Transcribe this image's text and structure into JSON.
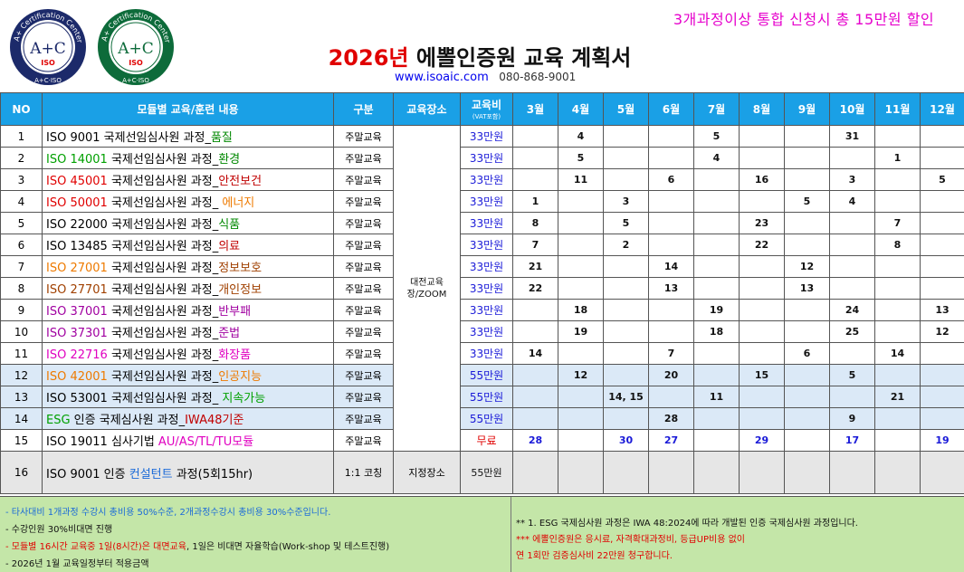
{
  "header": {
    "promo": "3개과정이상 통합 신청시 총 15만원 할인",
    "title_year": "2026년",
    "title_rest": "에뽈인증원 교육 계획서",
    "url": "www.isoaic.com",
    "phone": "080-868-9001",
    "logos": [
      {
        "ring_text": "A+ Certification Center",
        "center": "A+C",
        "sub": "ISO",
        "bottom": "A+C·ISO",
        "color": "#1c2a6a"
      },
      {
        "ring_text": "A+ Certification Center",
        "center": "A+C",
        "sub": "ISO",
        "bottom": "A+C·ISO",
        "color": "#0d6b3a"
      }
    ]
  },
  "table": {
    "headers": {
      "no": "NO",
      "course": "모듈별 교육/훈련 내용",
      "type": "구분",
      "location": "교육장소",
      "fee": "교육비",
      "fee_note": "(VAT포함)",
      "months": [
        "3월",
        "4월",
        "5월",
        "6월",
        "7월",
        "8월",
        "9월",
        "10월",
        "11월",
        "12월"
      ]
    },
    "location_merged": "대전교육장/ZOOM",
    "rows": [
      {
        "no": "1",
        "code": "ISO 9001",
        "code_color": "black",
        "mid": " 국제선임심사원 과정_",
        "tail": "품질",
        "tail_color": "darkgreen",
        "type": "주말교육",
        "fee": "33만원",
        "dates": [
          "",
          "4",
          "",
          "",
          "5",
          "",
          "",
          "31",
          "",
          ""
        ]
      },
      {
        "no": "2",
        "code": "ISO 14001",
        "code_color": "green",
        "mid": " 국제선임심사원 과정_",
        "tail": "환경",
        "tail_color": "darkgreen",
        "type": "주말교육",
        "fee": "33만원",
        "dates": [
          "",
          "5",
          "",
          "",
          "4",
          "",
          "",
          "",
          "1",
          ""
        ]
      },
      {
        "no": "3",
        "code": "ISO 45001",
        "code_color": "red",
        "mid": " 국제선임심사원 과정_",
        "tail": "안전보건",
        "tail_color": "darkred",
        "type": "주말교육",
        "fee": "33만원",
        "dates": [
          "",
          "11",
          "",
          "6",
          "",
          "16",
          "",
          "3",
          "",
          "5"
        ]
      },
      {
        "no": "4",
        "code": "ISO 50001",
        "code_color": "red",
        "mid": " 국제선임심사원 과정_ ",
        "tail": "에너지",
        "tail_color": "orange",
        "type": "주말교육",
        "fee": "33만원",
        "dates": [
          "1",
          "",
          "3",
          "",
          "",
          "",
          "5",
          "4",
          "",
          ""
        ]
      },
      {
        "no": "5",
        "code": "ISO 22000",
        "code_color": "black",
        "mid": " 국제선임심사원 과정_",
        "tail": "식품",
        "tail_color": "darkgreen",
        "type": "주말교육",
        "fee": "33만원",
        "dates": [
          "8",
          "",
          "5",
          "",
          "",
          "23",
          "",
          "",
          "7",
          ""
        ]
      },
      {
        "no": "6",
        "code": "ISO 13485",
        "code_color": "black",
        "mid": " 국제선임심사원 과정_",
        "tail": "의료",
        "tail_color": "darkred",
        "type": "주말교육",
        "fee": "33만원",
        "dates": [
          "7",
          "",
          "2",
          "",
          "",
          "22",
          "",
          "",
          "8",
          ""
        ]
      },
      {
        "no": "7",
        "code": "ISO 27001",
        "code_color": "orange",
        "mid": " 국제선임심사원 과정_",
        "tail": "정보보호",
        "tail_color": "brown",
        "type": "주말교육",
        "fee": "33만원",
        "dates": [
          "21",
          "",
          "",
          "14",
          "",
          "",
          "12",
          "",
          "",
          ""
        ]
      },
      {
        "no": "8",
        "code": "ISO 27701",
        "code_color": "brown",
        "mid": " 국제선임심사원 과정_",
        "tail": "개인정보",
        "tail_color": "brown",
        "type": "주말교육",
        "fee": "33만원",
        "dates": [
          "22",
          "",
          "",
          "13",
          "",
          "",
          "13",
          "",
          "",
          ""
        ]
      },
      {
        "no": "9",
        "code": "ISO 37001",
        "code_color": "purple",
        "mid": " 국제선임심사원 과정_",
        "tail": "반부패",
        "tail_color": "purple",
        "type": "주말교육",
        "fee": "33만원",
        "dates": [
          "",
          "18",
          "",
          "",
          "19",
          "",
          "",
          "24",
          "",
          "13"
        ]
      },
      {
        "no": "10",
        "code": "ISO 37301",
        "code_color": "purple",
        "mid": " 국제선임심사원 과정_",
        "tail": "준법",
        "tail_color": "purple",
        "type": "주말교육",
        "fee": "33만원",
        "dates": [
          "",
          "19",
          "",
          "",
          "18",
          "",
          "",
          "25",
          "",
          "12"
        ]
      },
      {
        "no": "11",
        "code": "ISO 22716",
        "code_color": "magenta",
        "mid": " 국제선임심사원 과정_",
        "tail": "화장품",
        "tail_color": "magenta",
        "type": "주말교육",
        "fee": "33만원",
        "dates": [
          "14",
          "",
          "",
          "7",
          "",
          "",
          "6",
          "",
          "14",
          ""
        ]
      },
      {
        "no": "12",
        "code": "ISO 42001",
        "code_color": "orange",
        "mid": " 국제선임심사원 과정_",
        "tail": "인공지능",
        "tail_color": "orange",
        "type": "주말교육",
        "fee": "55만원",
        "dates": [
          "",
          "12",
          "",
          "20",
          "",
          "15",
          "",
          "5",
          "",
          ""
        ]
      },
      {
        "no": "13",
        "code": "ISO 53001",
        "code_color": "black",
        "mid": " 국제선임심사원 과정_ ",
        "tail": "지속가능",
        "tail_color": "green",
        "type": "주말교육",
        "fee": "55만원",
        "dates": [
          "",
          "",
          "14, 15",
          "",
          "11",
          "",
          "",
          "",
          "21",
          ""
        ]
      },
      {
        "no": "14",
        "code": "ESG",
        "code_color": "green",
        "mid": " 인증 국제심사원 과정_",
        "tail": "IWA48기준",
        "tail_color": "darkred",
        "type": "주말교육",
        "fee": "55만원",
        "dates": [
          "",
          "",
          "",
          "28",
          "",
          "",
          "",
          "9",
          "",
          ""
        ]
      },
      {
        "no": "15",
        "code": "ISO 19011",
        "code_color": "black",
        "mid": " 심사기법 ",
        "tail": "AU/AS/TL/TU모듈",
        "tail_color": "magenta",
        "type": "주말교육",
        "fee": "무료",
        "dates": [
          "28",
          "",
          "30",
          "27",
          "",
          "29",
          "",
          "17",
          "",
          "19"
        ]
      },
      {
        "no": "16",
        "code": "ISO 9001",
        "code_color": "black",
        "mid": " 인증 ",
        "tail": "컨설턴트",
        "tail_color": "blue",
        "tail2": " 과정(5회15hr)",
        "type": "1:1 코칭",
        "location": "지정장소",
        "fee": "55만원",
        "dates": [
          "",
          "",
          "",
          "",
          "",
          "",
          "",
          "",
          "",
          ""
        ]
      }
    ]
  },
  "notes": {
    "left": [
      {
        "text": "- 타사대비 1개과정 수강시 총비용 50%수준,  2개과정수강시 총비용 30%수준입니다.",
        "color": "blue"
      },
      {
        "text": "- 수강인원 30%비대면 진행",
        "color": "black"
      },
      {
        "text_red": "- 모듈별 16시간 교육중 1일(8시간)은 대면교육",
        "text_black": ", 1일은 비대면 자율학습(Work-shop 및 테스트진행)"
      },
      {
        "text": "- 2026년 1월 교육일정부터 적용금액",
        "color": "black"
      }
    ],
    "right": [
      {
        "text": "**  1. ESG 국제심사원 과정은 IWA 48:2024에 따라 개발된 인증 국제심사원 과정입니다.",
        "color": "black"
      },
      {
        "text": "*** 에뽈인증원은 응시료, 자격확대과정비, 등급UP비용 없이",
        "color": "red"
      },
      {
        "text": "     연 1회만 검증심사비 22만원 청구합니다.",
        "color": "red"
      }
    ]
  }
}
